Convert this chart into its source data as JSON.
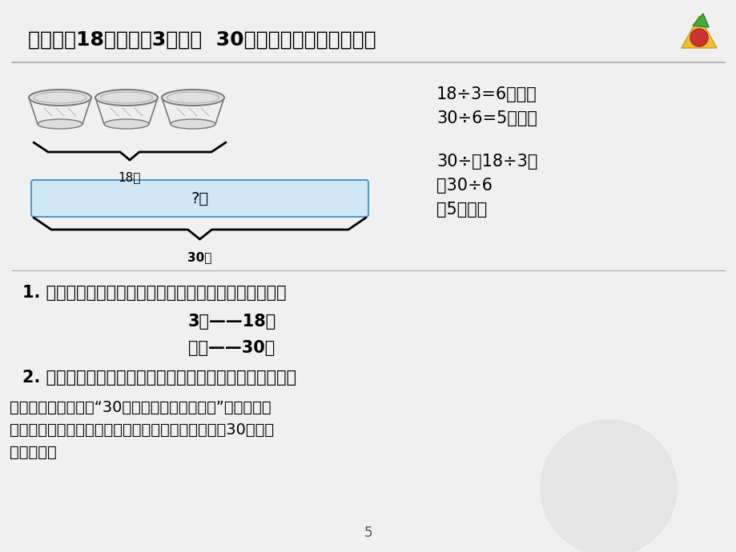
{
  "bg_color": "#f0f0f0",
  "title_text": "想一想：18元可以一3个碗，  30元可以买几个同样的碗？",
  "title_fontsize": 18,
  "formula_line1": "18÷3=6（元）",
  "formula_line2": "30÷6=5（个）",
  "formula_line3": "30÷（18÷3）",
  "formula_line4": "＝30÷6",
  "formula_line5": "＝5（个）",
  "label_18yuan": "18元",
  "label_30yuan": "30元",
  "label_question": "?个",
  "box_color": "#d0e8f5",
  "box_edge_color": "#5599cc",
  "q1_text": "1. 想一想和刚才的那道题有什么相同点？不同点是什么？",
  "q1_line2": "3个——18元",
  "q1_line3": "？个——30元",
  "q2_text": "2. 解决这个问题该怎样想呢？把你的想法用算式表示出来。",
  "summary_line1": "小结：我们要想求出“30元可以买几个同样的碗”，根据题目",
  "summary_line2": "中知道的数量也必须先求出一个碗的价錢才能够求出30元可以",
  "summary_line3": "买几个碗。",
  "page_num": "5"
}
